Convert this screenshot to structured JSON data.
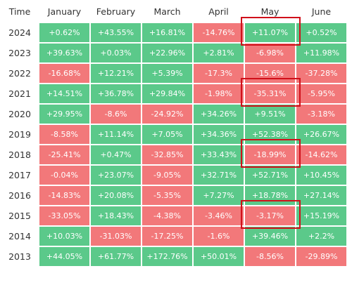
{
  "header": {
    "time_label": "Time",
    "months": [
      "January",
      "February",
      "March",
      "April",
      "May",
      "June"
    ]
  },
  "colors": {
    "positive": "#5bc98a",
    "negative": "#f2787a",
    "highlight_box": "#d0101a"
  },
  "rows": [
    {
      "year": "2024",
      "values": [
        "+0.62%",
        "+43.55%",
        "+16.81%",
        "-14.76%",
        "+11.07%",
        "+0.52%"
      ]
    },
    {
      "year": "2023",
      "values": [
        "+39.63%",
        "+0.03%",
        "+22.96%",
        "+2.81%",
        "-6.98%",
        "+11.98%"
      ]
    },
    {
      "year": "2022",
      "values": [
        "-16.68%",
        "+12.21%",
        "+5.39%",
        "-17.3%",
        "-15.6%",
        "-37.28%"
      ]
    },
    {
      "year": "2021",
      "values": [
        "+14.51%",
        "+36.78%",
        "+29.84%",
        "-1.98%",
        "-35.31%",
        "-5.95%"
      ]
    },
    {
      "year": "2020",
      "values": [
        "+29.95%",
        "-8.6%",
        "-24.92%",
        "+34.26%",
        "+9.51%",
        "-3.18%"
      ]
    },
    {
      "year": "2019",
      "values": [
        "-8.58%",
        "+11.14%",
        "+7.05%",
        "+34.36%",
        "+52.38%",
        "+26.67%"
      ]
    },
    {
      "year": "2018",
      "values": [
        "-25.41%",
        "+0.47%",
        "-32.85%",
        "+33.43%",
        "-18.99%",
        "-14.62%"
      ]
    },
    {
      "year": "2017",
      "values": [
        "-0.04%",
        "+23.07%",
        "-9.05%",
        "+32.71%",
        "+52.71%",
        "+10.45%"
      ]
    },
    {
      "year": "2016",
      "values": [
        "-14.83%",
        "+20.08%",
        "-5.35%",
        "+7.27%",
        "+18.78%",
        "+27.14%"
      ]
    },
    {
      "year": "2015",
      "values": [
        "-33.05%",
        "+18.43%",
        "-4.38%",
        "-3.46%",
        "-3.17%",
        "+15.19%"
      ]
    },
    {
      "year": "2014",
      "values": [
        "+10.03%",
        "-31.03%",
        "-17.25%",
        "-1.6%",
        "+39.46%",
        "+2.2%"
      ]
    },
    {
      "year": "2013",
      "values": [
        "+44.05%",
        "+61.77%",
        "+172.76%",
        "+50.01%",
        "-8.56%",
        "-29.89%"
      ]
    }
  ],
  "highlights": [
    {
      "year": "2024",
      "month": "May"
    },
    {
      "year": "2021",
      "month": "May"
    },
    {
      "year": "2018",
      "month": "May"
    },
    {
      "year": "2015",
      "month": "May"
    }
  ]
}
